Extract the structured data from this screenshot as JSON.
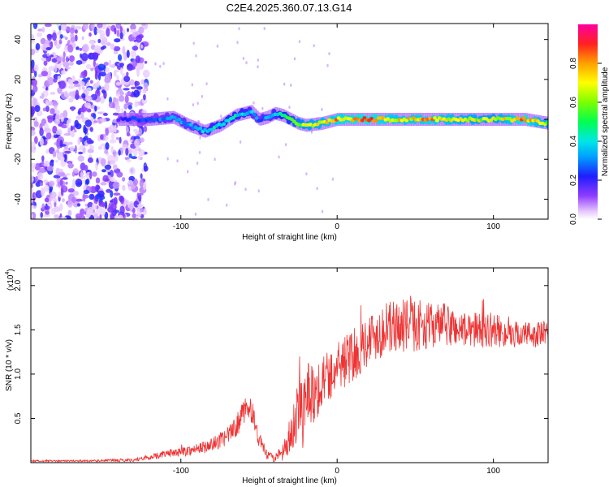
{
  "title": "C2E4.2025.360.07.13.G14",
  "chart_data": [
    {
      "type": "heatmap",
      "name": "spectrogram",
      "xlabel": "Height of straight line (km)",
      "ylabel": "Frequency (Hz)",
      "xlim": [
        -196,
        135
      ],
      "ylim": [
        -50,
        48
      ],
      "x_ticks": [
        -100,
        0,
        100
      ],
      "x_tick_labels": [
        "-100",
        "0",
        "100"
      ],
      "y_ticks": [
        -40,
        -20,
        0,
        20,
        40
      ],
      "y_tick_labels": [
        "-40",
        "-20",
        "0",
        "20",
        "40"
      ],
      "colorbar": {
        "label": "Normalized spectral amplitude",
        "range": [
          0,
          1
        ],
        "ticks": [
          0,
          0.2,
          0.4,
          0.6,
          0.8
        ],
        "tick_labels": [
          "0.0",
          "0.2",
          "0.4",
          "0.6",
          "0.8"
        ]
      },
      "noise_region_x": [
        -196,
        -122
      ],
      "ridge": {
        "x": [
          -140,
          -120,
          -105,
          -95,
          -85,
          -75,
          -65,
          -55,
          -50,
          -45,
          -40,
          -35,
          -30,
          -25,
          -20,
          -10,
          0,
          20,
          40,
          60,
          80,
          100,
          120,
          135
        ],
        "frequency": [
          0,
          0,
          1,
          -3,
          -6,
          -3,
          2,
          4,
          0,
          1,
          3,
          2,
          0,
          -2,
          -3,
          -2,
          0,
          0,
          0,
          0,
          0,
          0,
          0,
          -2
        ],
        "amplitude": [
          0.2,
          0.3,
          0.35,
          0.35,
          0.4,
          0.45,
          0.45,
          0.4,
          0.3,
          0.35,
          0.4,
          0.5,
          0.55,
          0.65,
          0.7,
          0.75,
          0.85,
          0.9,
          0.8,
          0.85,
          0.75,
          0.7,
          0.9,
          0.7
        ]
      }
    },
    {
      "type": "line",
      "name": "snr",
      "xlabel": "Height of straight line (km)",
      "ylabel": "SNR (10 * v/v)",
      "y_scale_label": "(x10",
      "y_scale_exponent": "4",
      "y_scale_suffix": ")",
      "xlim": [
        -196,
        135
      ],
      "ylim": [
        0,
        2.2
      ],
      "x_ticks": [
        -100,
        0,
        100
      ],
      "x_tick_labels": [
        "-100",
        "0",
        "100"
      ],
      "y_ticks": [
        0.5,
        1.0,
        1.5,
        2.0
      ],
      "y_tick_labels": [
        "0.5",
        "1.0",
        "1.5",
        "2.0"
      ],
      "line_color": "#ee3333",
      "series": [
        {
          "name": "SNR",
          "x": [
            -196,
            -160,
            -130,
            -120,
            -110,
            -100,
            -90,
            -80,
            -70,
            -65,
            -60,
            -57,
            -54,
            -51,
            -48,
            -45,
            -40,
            -35,
            -30,
            -27,
            -24,
            -22,
            -20,
            -17,
            -14,
            -10,
            -5,
            0,
            5,
            10,
            15,
            20,
            25,
            30,
            40,
            50,
            60,
            70,
            80,
            90,
            100,
            110,
            120,
            130,
            135
          ],
          "y": [
            0.02,
            0.02,
            0.03,
            0.06,
            0.1,
            0.12,
            0.15,
            0.2,
            0.3,
            0.4,
            0.55,
            0.65,
            0.55,
            0.3,
            0.2,
            0.08,
            0.05,
            0.1,
            0.25,
            0.5,
            0.8,
            0.55,
            0.9,
            0.75,
            0.8,
            0.9,
            1.0,
            1.05,
            1.15,
            1.2,
            1.3,
            1.4,
            1.45,
            1.5,
            1.55,
            1.55,
            1.55,
            1.55,
            1.5,
            1.5,
            1.5,
            1.45,
            1.45,
            1.45,
            1.45
          ],
          "noise": [
            0.01,
            0.01,
            0.02,
            0.03,
            0.04,
            0.05,
            0.06,
            0.08,
            0.1,
            0.12,
            0.15,
            0.15,
            0.12,
            0.1,
            0.08,
            0.05,
            0.05,
            0.1,
            0.2,
            0.35,
            0.4,
            0.4,
            0.4,
            0.35,
            0.35,
            0.3,
            0.3,
            0.3,
            0.3,
            0.3,
            0.3,
            0.3,
            0.3,
            0.3,
            0.3,
            0.3,
            0.25,
            0.25,
            0.2,
            0.2,
            0.2,
            0.15,
            0.15,
            0.15,
            0.15
          ]
        }
      ]
    }
  ]
}
